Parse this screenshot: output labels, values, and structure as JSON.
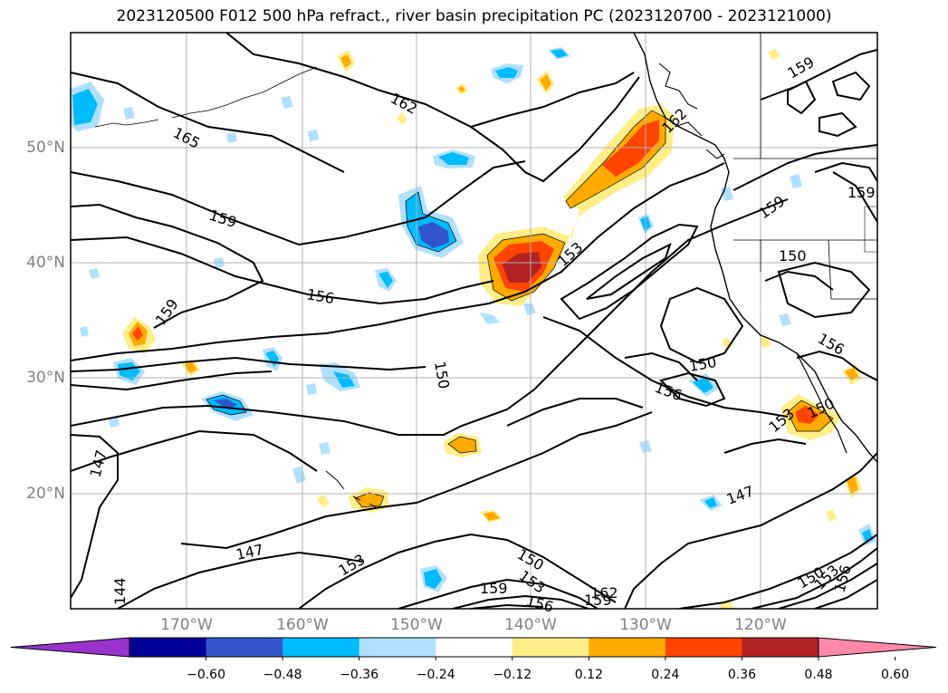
{
  "title": "2023120500 F012 500 hPa refract., river basin precipitation PC (2023120700 - 2023121000)",
  "lat_labels": [
    "50°N",
    "40°N",
    "30°N",
    "20°N"
  ],
  "lon_labels": [
    "170°W",
    "160°W",
    "150°W",
    "140°W",
    "130°W",
    "120°W"
  ],
  "colorbar": {
    "colors": [
      "#9933cc",
      "#000099",
      "#3355cc",
      "#00bbff",
      "#b0e0ff",
      "#ffffff",
      "#ffee88",
      "#ffaa00",
      "#ff4400",
      "#b22222",
      "#ff88aa"
    ],
    "ticks": [
      "−0.60",
      "−0.48",
      "−0.36",
      "−0.24",
      "−0.12",
      "0.12",
      "0.24",
      "0.36",
      "0.48",
      "0.60"
    ]
  },
  "contour_labels": [
    "165",
    "162",
    "159",
    "159",
    "156",
    "159",
    "153",
    "150",
    "147",
    "147",
    "144",
    "153",
    "150",
    "153",
    "159",
    "156",
    "159",
    "162",
    "150",
    "156",
    "153",
    "150",
    "147",
    "150",
    "153",
    "156",
    "159",
    "159",
    "150",
    "156",
    "162"
  ]
}
